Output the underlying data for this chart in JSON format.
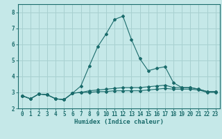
{
  "title": "",
  "xlabel": "Humidex (Indice chaleur)",
  "ylabel": "",
  "bg_color": "#c5e8e8",
  "grid_color": "#a8d0d0",
  "line_color": "#1a6b6b",
  "x": [
    0,
    1,
    2,
    3,
    4,
    5,
    6,
    7,
    8,
    9,
    10,
    11,
    12,
    13,
    14,
    15,
    16,
    17,
    18,
    19,
    20,
    21,
    22,
    23
  ],
  "y_main": [
    2.8,
    2.6,
    2.9,
    2.85,
    2.6,
    2.55,
    2.95,
    3.4,
    4.65,
    5.85,
    6.65,
    7.55,
    7.75,
    6.3,
    5.1,
    4.35,
    4.5,
    4.6,
    3.6,
    3.3,
    3.3,
    3.2,
    3.05,
    3.05
  ],
  "y_high": [
    2.8,
    2.6,
    2.9,
    2.85,
    2.6,
    2.55,
    2.95,
    3.0,
    3.1,
    3.15,
    3.2,
    3.25,
    3.3,
    3.3,
    3.3,
    3.35,
    3.4,
    3.45,
    3.3,
    3.3,
    3.3,
    3.2,
    3.05,
    3.05
  ],
  "y_low": [
    2.8,
    2.6,
    2.9,
    2.85,
    2.6,
    2.55,
    2.95,
    3.0,
    3.0,
    3.05,
    3.05,
    3.1,
    3.1,
    3.1,
    3.1,
    3.15,
    3.2,
    3.25,
    3.2,
    3.2,
    3.2,
    3.15,
    3.0,
    3.0
  ],
  "xlim": [
    -0.5,
    23.5
  ],
  "ylim": [
    2.0,
    8.5
  ],
  "yticks": [
    2,
    3,
    4,
    5,
    6,
    7,
    8
  ],
  "xticks": [
    0,
    1,
    2,
    3,
    4,
    5,
    6,
    7,
    8,
    9,
    10,
    11,
    12,
    13,
    14,
    15,
    16,
    17,
    18,
    19,
    20,
    21,
    22,
    23
  ],
  "xlabel_fontsize": 6.5,
  "tick_fontsize": 5.5,
  "linewidth": 0.8,
  "markersize": 2.0
}
